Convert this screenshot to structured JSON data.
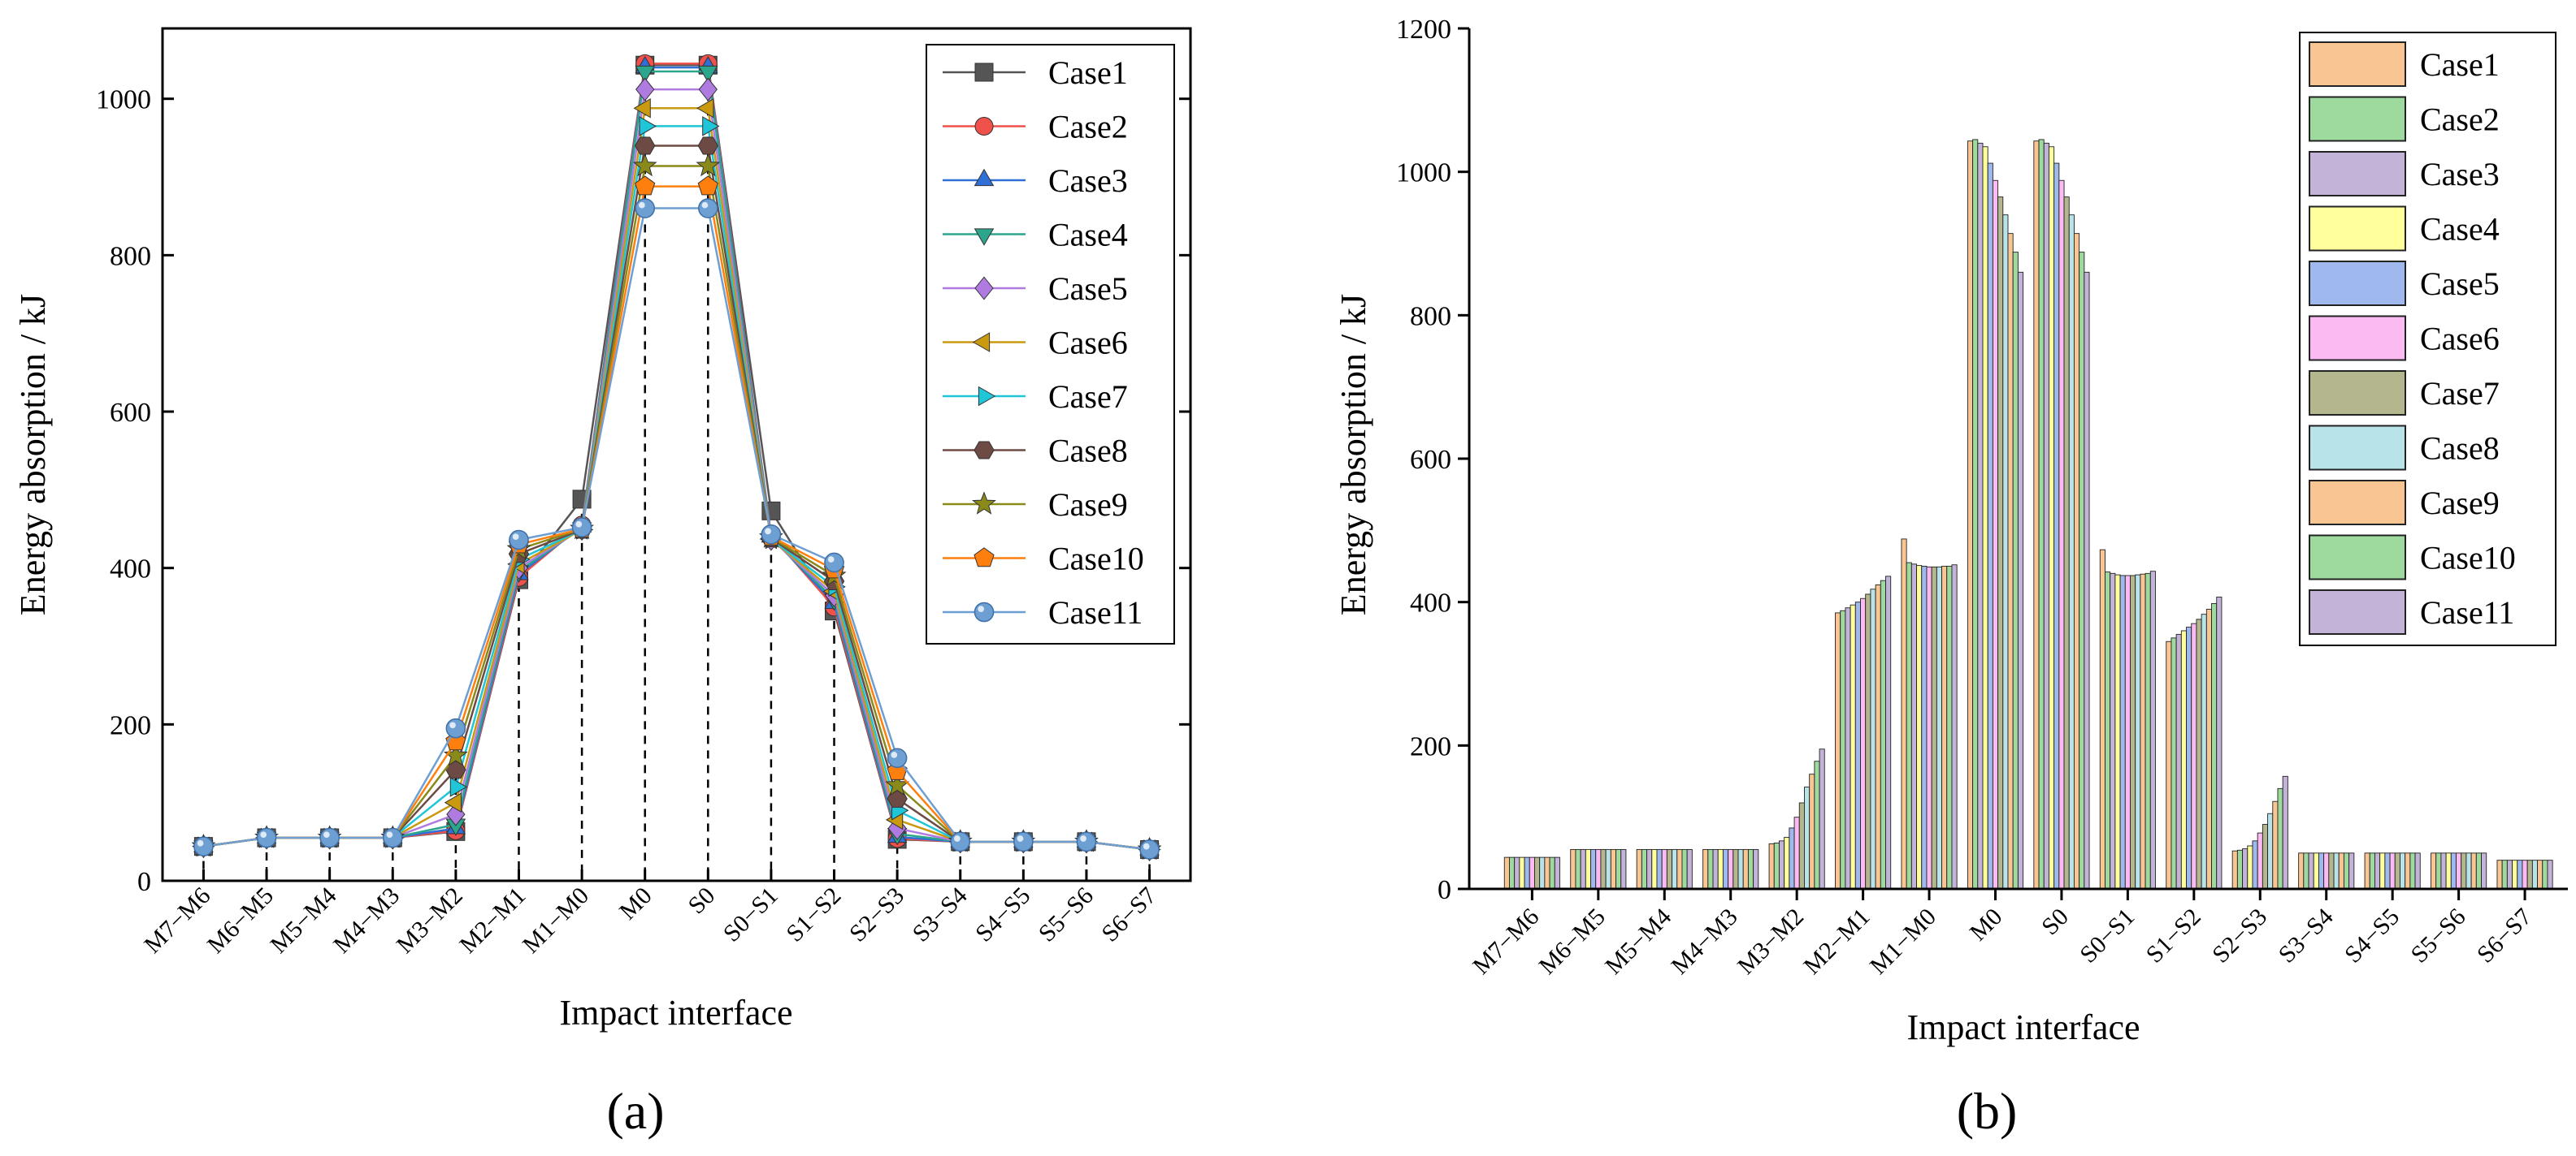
{
  "figure": {
    "panel_a_label": "(a)",
    "panel_b_label": "(b)"
  },
  "chart_data": [
    {
      "type": "line",
      "panel": "(a)",
      "xlabel": "Impact interface",
      "ylabel": "Energy absorption / kJ",
      "ylim": [
        0,
        1090
      ],
      "yticks": [
        0,
        200,
        400,
        600,
        800,
        1000
      ],
      "grid": false,
      "legend_position": "top-right",
      "categories": [
        "M7−M6",
        "M6−M5",
        "M5−M4",
        "M4−M3",
        "M3−M2",
        "M2−M1",
        "M1−M0",
        "M0",
        "S0",
        "S0−S1",
        "S1−S2",
        "S2−S3",
        "S3−S4",
        "S4−S5",
        "S5−S6",
        "S6−S7"
      ],
      "series": [
        {
          "name": "Case1",
          "color": "#555555",
          "marker": "square",
          "values": [
            44,
            55,
            55,
            55,
            63,
            385,
            488,
            1043,
            1043,
            473,
            345,
            53,
            50,
            50,
            50,
            40
          ]
        },
        {
          "name": "Case2",
          "color": "#f0514a",
          "marker": "circle",
          "values": [
            44,
            55,
            55,
            55,
            64,
            388,
            455,
            1045,
            1045,
            442,
            350,
            54,
            50,
            50,
            50,
            40
          ]
        },
        {
          "name": "Case3",
          "color": "#2f6fd6",
          "marker": "triangle-up",
          "values": [
            44,
            55,
            55,
            55,
            67,
            392,
            453,
            1040,
            1040,
            440,
            355,
            56,
            50,
            50,
            50,
            40
          ]
        },
        {
          "name": "Case4",
          "color": "#2ca58d",
          "marker": "triangle-down",
          "values": [
            44,
            55,
            55,
            55,
            72,
            396,
            451,
            1035,
            1035,
            438,
            360,
            60,
            50,
            50,
            50,
            40
          ]
        },
        {
          "name": "Case5",
          "color": "#b07be0",
          "marker": "diamond",
          "values": [
            44,
            55,
            55,
            55,
            85,
            400,
            450,
            1012,
            1012,
            437,
            365,
            67,
            50,
            50,
            50,
            40
          ]
        },
        {
          "name": "Case6",
          "color": "#c99a10",
          "marker": "triangle-left",
          "values": [
            44,
            55,
            55,
            55,
            100,
            405,
            449,
            988,
            988,
            437,
            370,
            78,
            50,
            50,
            50,
            40
          ]
        },
        {
          "name": "Case7",
          "color": "#1ec6d8",
          "marker": "triangle-right",
          "values": [
            44,
            55,
            55,
            55,
            120,
            411,
            449,
            965,
            965,
            437,
            376,
            90,
            50,
            50,
            50,
            40
          ]
        },
        {
          "name": "Case8",
          "color": "#6e4a44",
          "marker": "hexagon",
          "values": [
            44,
            55,
            55,
            55,
            142,
            418,
            449,
            940,
            940,
            438,
            383,
            105,
            50,
            50,
            50,
            40
          ]
        },
        {
          "name": "Case9",
          "color": "#8a8a1a",
          "marker": "star",
          "values": [
            44,
            55,
            55,
            55,
            160,
            424,
            450,
            914,
            914,
            439,
            390,
            122,
            50,
            50,
            50,
            40
          ]
        },
        {
          "name": "Case10",
          "color": "#ff7f0e",
          "marker": "pentagon",
          "values": [
            44,
            55,
            55,
            55,
            178,
            430,
            450,
            888,
            888,
            440,
            398,
            140,
            50,
            50,
            50,
            40
          ]
        },
        {
          "name": "Case11",
          "color": "#6e9fd3",
          "marker": "sphere",
          "values": [
            44,
            55,
            55,
            55,
            195,
            436,
            452,
            860,
            860,
            443,
            407,
            157,
            50,
            50,
            50,
            40
          ]
        }
      ]
    },
    {
      "type": "bar",
      "panel": "(b)",
      "xlabel": "Impact interface",
      "ylabel": "Energy absorption / kJ",
      "ylim": [
        0,
        1200
      ],
      "yticks": [
        0,
        200,
        400,
        600,
        800,
        1000,
        1200
      ],
      "grid": false,
      "legend_position": "top-right",
      "categories": [
        "M7−M6",
        "M6−M5",
        "M5−M4",
        "M4−M3",
        "M3−M2",
        "M2−M1",
        "M1−M0",
        "M0",
        "S0",
        "S0−S1",
        "S1−S2",
        "S2−S3",
        "S3−S4",
        "S4−S5",
        "S5−S6",
        "S6−S7"
      ],
      "series": [
        {
          "name": "Case1",
          "color": "#f9c593",
          "values": [
            44,
            55,
            55,
            55,
            63,
            385,
            488,
            1043,
            1043,
            473,
            345,
            53,
            50,
            50,
            50,
            40
          ]
        },
        {
          "name": "Case2",
          "color": "#9ed99d",
          "values": [
            44,
            55,
            55,
            55,
            64,
            388,
            455,
            1045,
            1045,
            442,
            350,
            54,
            50,
            50,
            50,
            40
          ]
        },
        {
          "name": "Case3",
          "color": "#c3b3d9",
          "values": [
            44,
            55,
            55,
            55,
            67,
            392,
            453,
            1040,
            1040,
            440,
            355,
            56,
            50,
            50,
            50,
            40
          ]
        },
        {
          "name": "Case4",
          "color": "#ffff9c",
          "values": [
            44,
            55,
            55,
            55,
            72,
            396,
            451,
            1035,
            1035,
            438,
            360,
            60,
            50,
            50,
            50,
            40
          ]
        },
        {
          "name": "Case5",
          "color": "#9fb9ee",
          "values": [
            44,
            55,
            55,
            55,
            85,
            400,
            450,
            1012,
            1012,
            437,
            365,
            67,
            50,
            50,
            50,
            40
          ]
        },
        {
          "name": "Case6",
          "color": "#fbbaf1",
          "values": [
            44,
            55,
            55,
            55,
            100,
            405,
            449,
            988,
            988,
            437,
            370,
            78,
            50,
            50,
            50,
            40
          ]
        },
        {
          "name": "Case7",
          "color": "#b4b68e",
          "values": [
            44,
            55,
            55,
            55,
            120,
            411,
            449,
            965,
            965,
            437,
            376,
            90,
            50,
            50,
            50,
            40
          ]
        },
        {
          "name": "Case8",
          "color": "#b7e3e9",
          "values": [
            44,
            55,
            55,
            55,
            142,
            418,
            449,
            940,
            940,
            438,
            383,
            105,
            50,
            50,
            50,
            40
          ]
        },
        {
          "name": "Case9",
          "color": "#f9c593",
          "values": [
            44,
            55,
            55,
            55,
            160,
            424,
            450,
            914,
            914,
            439,
            390,
            122,
            50,
            50,
            50,
            40
          ]
        },
        {
          "name": "Case10",
          "color": "#9ed99d",
          "values": [
            44,
            55,
            55,
            55,
            178,
            430,
            450,
            888,
            888,
            440,
            398,
            140,
            50,
            50,
            50,
            40
          ]
        },
        {
          "name": "Case11",
          "color": "#c3b3d9",
          "values": [
            44,
            55,
            55,
            55,
            195,
            436,
            452,
            860,
            860,
            443,
            407,
            157,
            50,
            50,
            50,
            40
          ]
        }
      ]
    }
  ]
}
